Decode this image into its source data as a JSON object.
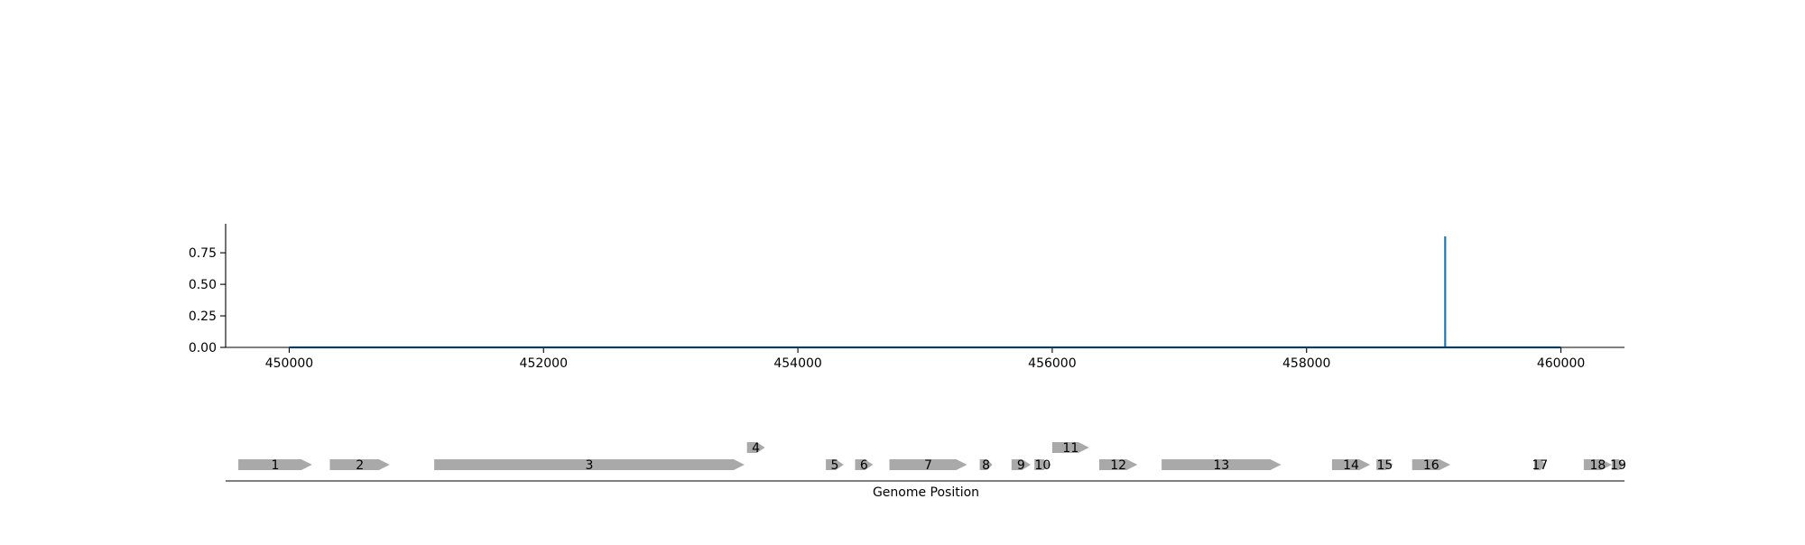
{
  "chart_data": [
    {
      "type": "line",
      "title": "",
      "xlabel": "",
      "ylabel": "",
      "xlim": [
        449500,
        460500
      ],
      "ylim": [
        0,
        0.98
      ],
      "x_ticks": [
        450000,
        452000,
        454000,
        456000,
        458000,
        460000
      ],
      "x_tick_labels": [
        "450000",
        "452000",
        "454000",
        "456000",
        "458000",
        "460000"
      ],
      "y_ticks": [
        0,
        0.25,
        0.5,
        0.75
      ],
      "y_tick_labels": [
        "0.00",
        "0.25",
        "0.50",
        "0.75"
      ],
      "grid": false,
      "color": "#1f77b4",
      "series": [
        {
          "x": [
            450000,
            459090,
            459090,
            459090,
            460000
          ],
          "y": [
            0,
            0,
            0.88,
            0,
            0
          ]
        }
      ]
    },
    {
      "type": "gene-track",
      "xlabel": "Genome Position",
      "xlim": [
        449500,
        460500
      ],
      "feature_color": "#a9a9a9",
      "features": [
        {
          "label": "1",
          "start": 449600,
          "end": 450180,
          "strand": "+",
          "level": 0
        },
        {
          "label": "2",
          "start": 450320,
          "end": 450790,
          "strand": "+",
          "level": 0
        },
        {
          "label": "3",
          "start": 451140,
          "end": 453580,
          "strand": "+",
          "level": 0
        },
        {
          "label": "4",
          "start": 453600,
          "end": 453740,
          "strand": "+",
          "level": 1
        },
        {
          "label": "5",
          "start": 454220,
          "end": 454360,
          "strand": "+",
          "level": 0
        },
        {
          "label": "6",
          "start": 454450,
          "end": 454590,
          "strand": "+",
          "level": 0
        },
        {
          "label": "7",
          "start": 454720,
          "end": 455330,
          "strand": "+",
          "level": 0
        },
        {
          "label": "8",
          "start": 455430,
          "end": 455530,
          "strand": "+",
          "level": 0
        },
        {
          "label": "9",
          "start": 455680,
          "end": 455830,
          "strand": "+",
          "level": 0
        },
        {
          "label": "10",
          "start": 455860,
          "end": 455990,
          "strand": "+",
          "level": 0
        },
        {
          "label": "11",
          "start": 456000,
          "end": 456290,
          "strand": "+",
          "level": 1
        },
        {
          "label": "12",
          "start": 456370,
          "end": 456670,
          "strand": "+",
          "level": 0
        },
        {
          "label": "13",
          "start": 456860,
          "end": 457800,
          "strand": "+",
          "level": 0
        },
        {
          "label": "14",
          "start": 458200,
          "end": 458500,
          "strand": "+",
          "level": 0
        },
        {
          "label": "15",
          "start": 458550,
          "end": 458680,
          "strand": "+",
          "level": 0
        },
        {
          "label": "16",
          "start": 458830,
          "end": 459130,
          "strand": "+",
          "level": 0
        },
        {
          "label": "17",
          "start": 459790,
          "end": 459880,
          "strand": "+",
          "level": 0
        },
        {
          "label": "18",
          "start": 460180,
          "end": 460400,
          "strand": "+",
          "level": 0
        },
        {
          "label": "19",
          "start": 460400,
          "end": 460500,
          "strand": "+",
          "level": 0
        }
      ]
    }
  ]
}
